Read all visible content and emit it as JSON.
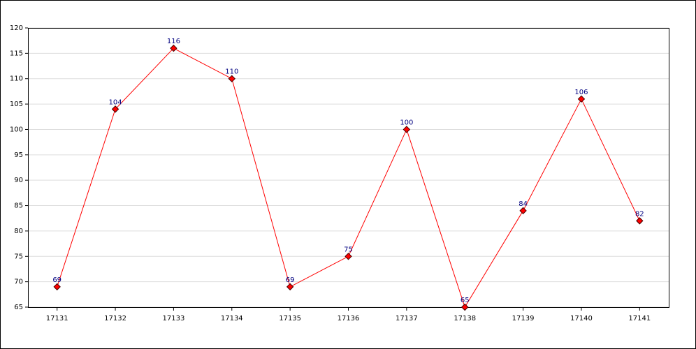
{
  "chart_data": {
    "type": "line",
    "x": [
      17131,
      17132,
      17133,
      17134,
      17135,
      17136,
      17137,
      17138,
      17139,
      17140,
      17141
    ],
    "values": [
      69,
      104,
      116,
      110,
      69,
      75,
      100,
      65,
      84,
      106,
      82
    ],
    "color": "#ff0000",
    "marker_color": "#ff0000",
    "label_color": "#000080",
    "xlim": [
      17130.5,
      17141.5
    ],
    "xticks": [
      17131,
      17132,
      17133,
      17134,
      17135,
      17136,
      17137,
      17138,
      17139,
      17140,
      17141
    ],
    "ylim": [
      65,
      120
    ],
    "yticks": [
      65,
      70,
      75,
      80,
      85,
      90,
      95,
      100,
      105,
      110,
      115,
      120
    ],
    "grid": true
  }
}
